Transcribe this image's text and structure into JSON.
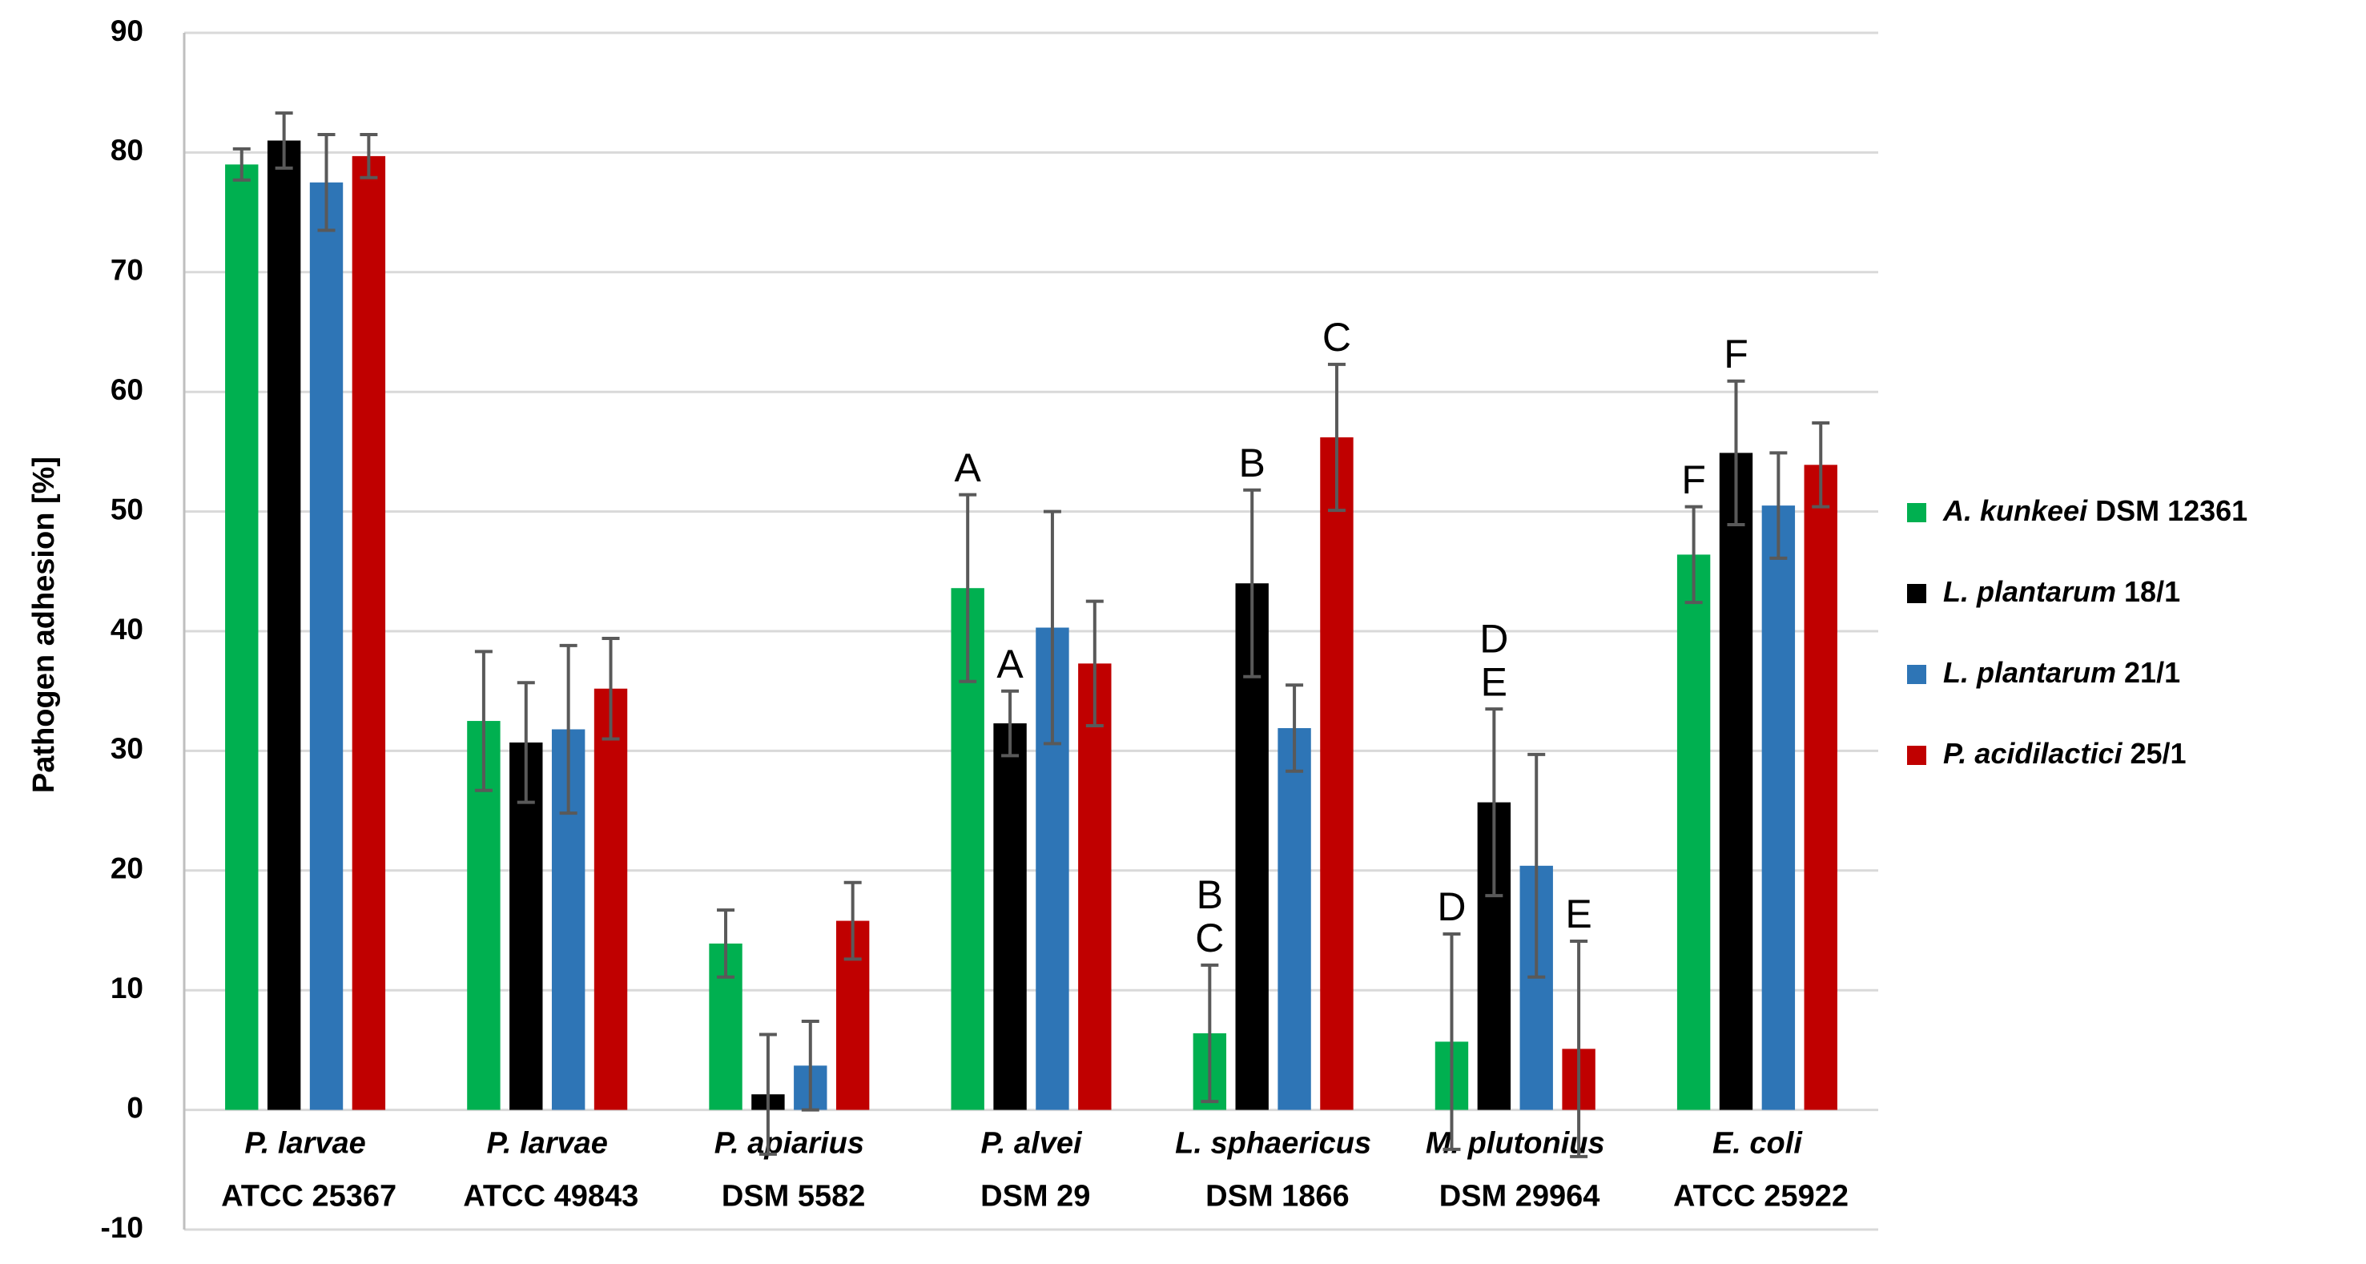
{
  "chart_data": {
    "type": "bar",
    "y_label": "Pathogen adhesion [%]",
    "categories": [
      "P. larvae ATCC 25367",
      "P. larvae ATCC 49843",
      "P. apiarius DSM 5582",
      "P. alvei DSM 29",
      "L. sphaericus DSM 1866",
      "M. plutonius DSM 29964",
      "E. coli ATCC 25922"
    ],
    "series": [
      {
        "name": "A. kunkeei DSM 12361",
        "color": "#00b050",
        "values": [
          79,
          32.5,
          13.9,
          43.6,
          6.4,
          5.7,
          46.4
        ],
        "errors": [
          1.3,
          5.8,
          2.8,
          7.8,
          5.7,
          9,
          4
        ],
        "annotations": [
          null,
          null,
          null,
          [
            "A"
          ],
          [
            "B",
            "C"
          ],
          [
            "D"
          ],
          [
            "F"
          ]
        ]
      },
      {
        "name": "L. plantarum 18/1",
        "color": "#000000",
        "values": [
          81,
          30.7,
          1.3,
          32.3,
          44,
          25.7,
          54.9
        ],
        "errors": [
          2.3,
          5,
          5,
          2.7,
          7.8,
          7.8,
          6
        ],
        "annotations": [
          null,
          null,
          null,
          [
            "A"
          ],
          [
            "B"
          ],
          [
            "D",
            "E"
          ],
          [
            "F"
          ]
        ]
      },
      {
        "name": "L. plantarum 21/1",
        "color": "#2e75b6",
        "values": [
          77.5,
          31.8,
          3.7,
          40.3,
          31.9,
          20.4,
          50.5
        ],
        "errors": [
          4,
          7,
          3.7,
          9.7,
          3.6,
          9.3,
          4.4
        ],
        "annotations": [
          null,
          null,
          null,
          null,
          null,
          null,
          null
        ]
      },
      {
        "name": "P. acidilactici 25/1",
        "color": "#c00000",
        "values": [
          79.7,
          35.2,
          15.8,
          37.3,
          56.2,
          5.1,
          53.9
        ],
        "errors": [
          1.8,
          4.2,
          3.2,
          5.2,
          6.1,
          9,
          3.5
        ],
        "annotations": [
          null,
          null,
          null,
          null,
          [
            "C"
          ],
          [
            "E"
          ],
          null
        ]
      }
    ],
    "error_color": "#595959",
    "ylim": [
      -10,
      90
    ],
    "yticks": [
      -10,
      0,
      10,
      20,
      30,
      40,
      50,
      60,
      70,
      80,
      90
    ],
    "grid": true,
    "legend": "right"
  }
}
